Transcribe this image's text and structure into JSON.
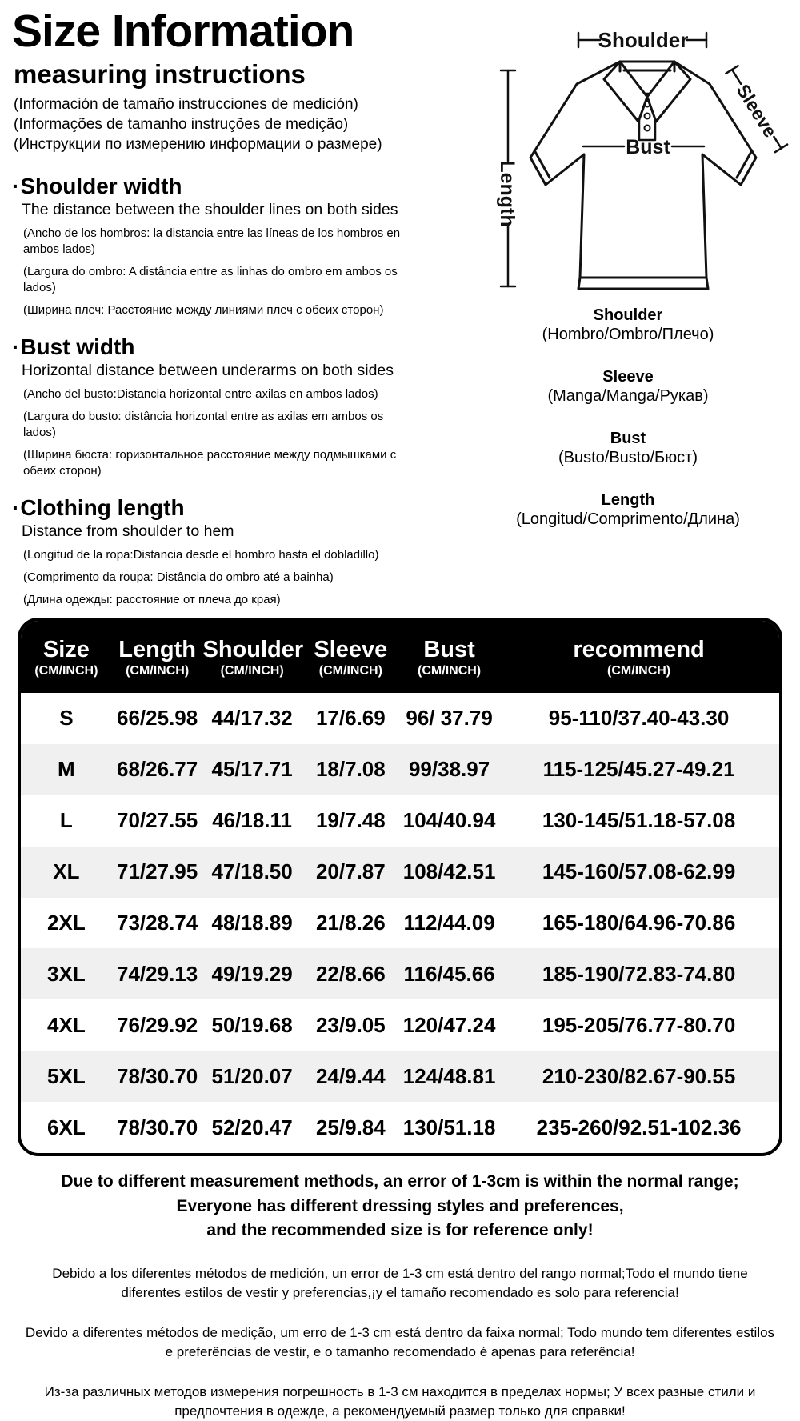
{
  "header": {
    "title": "Size Information",
    "subtitle": "measuring instructions",
    "subtitle_translations": [
      "(Información de tamaño instrucciones de medición)",
      "(Informações de tamanho instruções de medição)",
      "(Инструкции по измерению информации о размере)"
    ]
  },
  "sections": [
    {
      "bullet": "·",
      "title": "Shoulder width",
      "description": "The distance between the shoulder lines on both sides",
      "translations": [
        "(Ancho de los hombros: la distancia entre las líneas de los hombros en ambos lados)",
        "(Largura do ombro: A distância entre as linhas do ombro em ambos os lados)",
        "(Ширина плеч: Расстояние между линиями плеч с обеих сторон)"
      ]
    },
    {
      "bullet": "·",
      "title": "Bust width",
      "description": "Horizontal distance between underarms on both sides",
      "translations": [
        "(Ancho del busto:Distancia horizontal entre axilas en ambos lados)",
        "(Largura do busto: distância horizontal entre as axilas em ambos os lados)",
        "(Ширина бюста: горизонтальное расстояние между подмышками с обеих сторон)"
      ]
    },
    {
      "bullet": "·",
      "title": "Clothing length",
      "description": "Distance from shoulder to hem",
      "translations": [
        "(Longitud de la ropa:Distancia desde el hombro hasta el dobladillo)",
        "(Comprimento da roupa: Distância do ombro até a bainha)",
        "(Длина одежды: расстояние от плеча до края)"
      ]
    }
  ],
  "diagram": {
    "shirt_labels": {
      "shoulder": "Shoulder",
      "length": "Length",
      "sleeve": "Sleeve",
      "bust": "Bust"
    },
    "legend": [
      {
        "name": "Shoulder",
        "translation": "(Hombro/Ombro/Плечо)"
      },
      {
        "name": "Sleeve",
        "translation": "(Manga/Manga/Рукав)"
      },
      {
        "name": "Bust",
        "translation": "(Busto/Busto/Бюст)"
      },
      {
        "name": "Length",
        "translation": "(Longitud/Comprimento/Длина)"
      }
    ]
  },
  "size_table": {
    "unit_label": "(CM/INCH)",
    "columns": [
      "Size",
      "Length",
      "Shoulder",
      "Sleeve",
      "Bust",
      "recommend"
    ],
    "rows": [
      [
        "S",
        "66/25.98",
        "44/17.32",
        "17/6.69",
        "96/ 37.79",
        "95-110/37.40-43.30"
      ],
      [
        "M",
        "68/26.77",
        "45/17.71",
        "18/7.08",
        "99/38.97",
        "115-125/45.27-49.21"
      ],
      [
        "L",
        "70/27.55",
        "46/18.11",
        "19/7.48",
        "104/40.94",
        "130-145/51.18-57.08"
      ],
      [
        "XL",
        "71/27.95",
        "47/18.50",
        "20/7.87",
        "108/42.51",
        "145-160/57.08-62.99"
      ],
      [
        "2XL",
        "73/28.74",
        "48/18.89",
        "21/8.26",
        "112/44.09",
        "165-180/64.96-70.86"
      ],
      [
        "3XL",
        "74/29.13",
        "49/19.29",
        "22/8.66",
        "116/45.66",
        "185-190/72.83-74.80"
      ],
      [
        "4XL",
        "76/29.92",
        "50/19.68",
        "23/9.05",
        "120/47.24",
        "195-205/76.77-80.70"
      ],
      [
        "5XL",
        "78/30.70",
        "51/20.07",
        "24/9.44",
        "124/48.81",
        "210-230/82.67-90.55"
      ],
      [
        "6XL",
        "78/30.70",
        "52/20.47",
        "25/9.84",
        "130/51.18",
        "235-260/92.51-102.36"
      ]
    ],
    "colors": {
      "header_bg": "#000000",
      "header_text": "#ffffff",
      "row_bg": "#ffffff",
      "row_alt_bg": "#f0f0f0",
      "text": "#000000"
    }
  },
  "footer": {
    "notice_lines": [
      "Due to different measurement methods, an error of 1-3cm is within the normal range;",
      "Everyone has different dressing styles and preferences,",
      "and the recommended size is for reference only!"
    ],
    "notice_translations": [
      "Debido a los diferentes métodos de medición, un error de 1-3 cm está dentro del rango normal;Todo el mundo tiene diferentes estilos de vestir y preferencias,¡y el tamaño recomendado es solo para referencia!",
      "Devido a diferentes métodos de medição, um erro de 1-3 cm está dentro da faixa normal; Todo mundo tem diferentes estilos e preferências de vestir, e o tamanho recomendado é apenas para referência!",
      "Из-за различных методов измерения погрешность в 1-3 см находится в пределах нормы; У всех разные стили и предпочтения в одежде, а рекомендуемый размер только для справки!"
    ]
  }
}
